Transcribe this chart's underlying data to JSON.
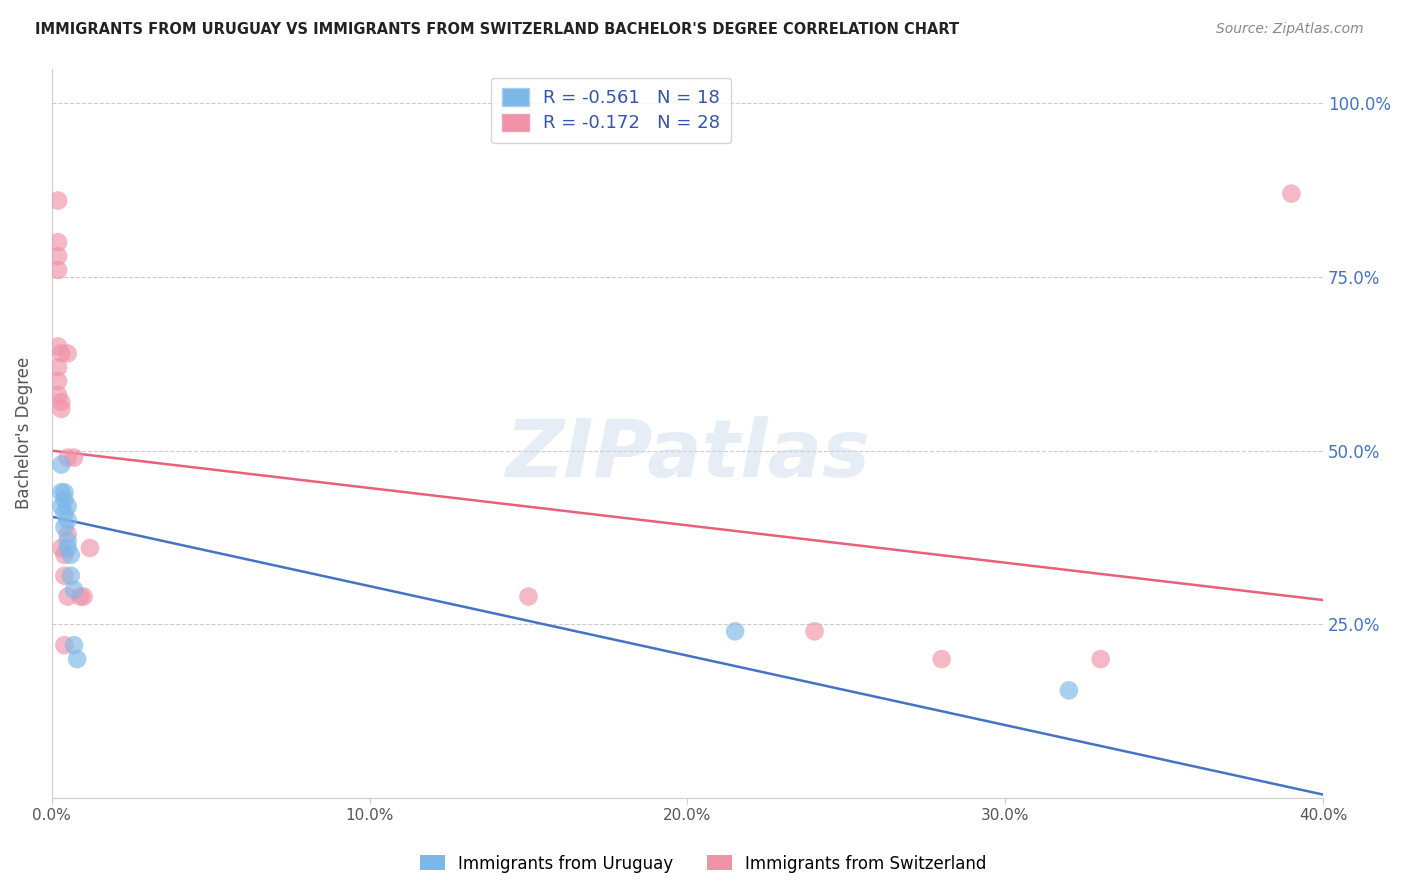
{
  "title": "IMMIGRANTS FROM URUGUAY VS IMMIGRANTS FROM SWITZERLAND BACHELOR'S DEGREE CORRELATION CHART",
  "source": "Source: ZipAtlas.com",
  "ylabel": "Bachelor's Degree",
  "ylim": [
    0.0,
    1.05
  ],
  "xlim": [
    0.0,
    0.4
  ],
  "ytick_positions": [
    0.0,
    0.25,
    0.5,
    0.75,
    1.0
  ],
  "ytick_labels_right": [
    "",
    "25.0%",
    "50.0%",
    "75.0%",
    "100.0%"
  ],
  "xtick_positions": [
    0.0,
    0.1,
    0.2,
    0.3,
    0.4
  ],
  "xtick_labels": [
    "0.0%",
    "10.0%",
    "20.0%",
    "30.0%",
    "40.0%"
  ],
  "legend_label1": "Immigrants from Uruguay",
  "legend_label2": "Immigrants from Switzerland",
  "watermark": "ZIPatlas",
  "uruguay_color": "#7db8e8",
  "switzerland_color": "#f093a8",
  "uruguay_line_color": "#4472c4",
  "switzerland_line_color": "#e8607a",
  "grid_color": "#cccccc",
  "uruguay_R": -0.561,
  "uruguay_N": 18,
  "switzerland_R": -0.172,
  "switzerland_N": 28,
  "uruguay_line_x": [
    0.0,
    0.4
  ],
  "uruguay_line_y": [
    0.405,
    0.005
  ],
  "switzerland_line_x": [
    0.0,
    0.4
  ],
  "switzerland_line_y": [
    0.5,
    0.285
  ],
  "uruguay_points": [
    [
      0.003,
      0.48
    ],
    [
      0.003,
      0.44
    ],
    [
      0.003,
      0.42
    ],
    [
      0.004,
      0.44
    ],
    [
      0.004,
      0.43
    ],
    [
      0.004,
      0.41
    ],
    [
      0.004,
      0.39
    ],
    [
      0.005,
      0.42
    ],
    [
      0.005,
      0.4
    ],
    [
      0.005,
      0.37
    ],
    [
      0.005,
      0.36
    ],
    [
      0.006,
      0.35
    ],
    [
      0.006,
      0.32
    ],
    [
      0.007,
      0.3
    ],
    [
      0.007,
      0.22
    ],
    [
      0.008,
      0.2
    ],
    [
      0.215,
      0.24
    ],
    [
      0.32,
      0.155
    ]
  ],
  "switzerland_points": [
    [
      0.002,
      0.86
    ],
    [
      0.002,
      0.8
    ],
    [
      0.002,
      0.78
    ],
    [
      0.002,
      0.76
    ],
    [
      0.002,
      0.65
    ],
    [
      0.002,
      0.62
    ],
    [
      0.002,
      0.6
    ],
    [
      0.002,
      0.58
    ],
    [
      0.003,
      0.64
    ],
    [
      0.003,
      0.57
    ],
    [
      0.003,
      0.56
    ],
    [
      0.003,
      0.36
    ],
    [
      0.004,
      0.35
    ],
    [
      0.004,
      0.32
    ],
    [
      0.004,
      0.22
    ],
    [
      0.005,
      0.64
    ],
    [
      0.005,
      0.49
    ],
    [
      0.005,
      0.38
    ],
    [
      0.005,
      0.29
    ],
    [
      0.007,
      0.49
    ],
    [
      0.009,
      0.29
    ],
    [
      0.01,
      0.29
    ],
    [
      0.012,
      0.36
    ],
    [
      0.15,
      0.29
    ],
    [
      0.24,
      0.24
    ],
    [
      0.28,
      0.2
    ],
    [
      0.33,
      0.2
    ],
    [
      0.39,
      0.87
    ]
  ]
}
